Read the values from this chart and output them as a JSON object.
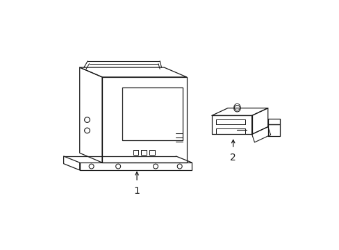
{
  "background_color": "#ffffff",
  "line_color": "#1a1a1a",
  "line_width": 0.9,
  "label1": "1",
  "label2": "2",
  "figsize": [
    4.89,
    3.6
  ],
  "dpi": 100
}
